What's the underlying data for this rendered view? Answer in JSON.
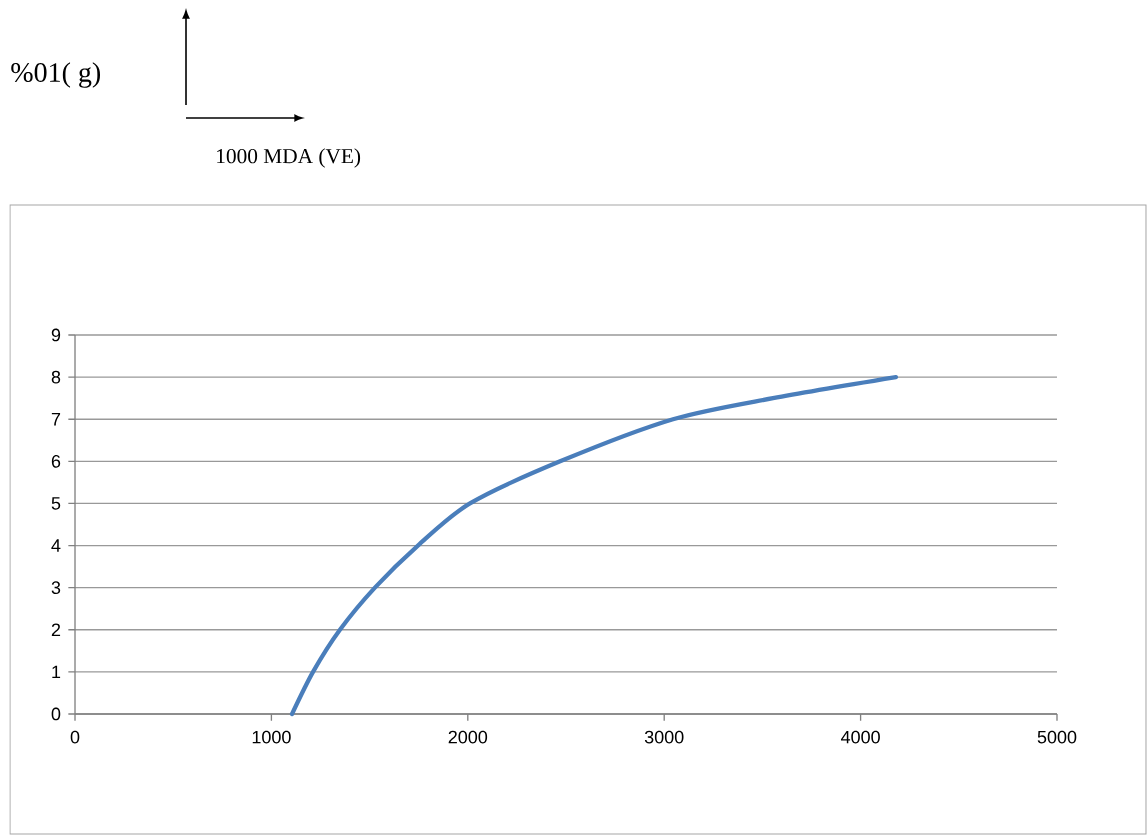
{
  "chart_data": {
    "type": "line",
    "annotations": [
      "%01( g)",
      "1000 MDA (VE)"
    ],
    "x": [
      1105,
      1212,
      1349,
      1527,
      1746,
      2011,
      2470,
      3045,
      3554,
      4180
    ],
    "series": [
      {
        "color": "#4a7ebb",
        "values": [
          0,
          1,
          2,
          3,
          4,
          5,
          6,
          7,
          7.5,
          8
        ]
      }
    ],
    "xlim": [
      0,
      5000
    ],
    "xticks": [
      0,
      1000,
      2000,
      3000,
      4000,
      5000
    ],
    "ylim": [
      0,
      9
    ],
    "yticks": [
      0,
      1,
      2,
      3,
      4,
      5,
      6,
      7,
      8,
      9
    ],
    "grid": "y",
    "marker": "none",
    "line_style": "solid"
  }
}
